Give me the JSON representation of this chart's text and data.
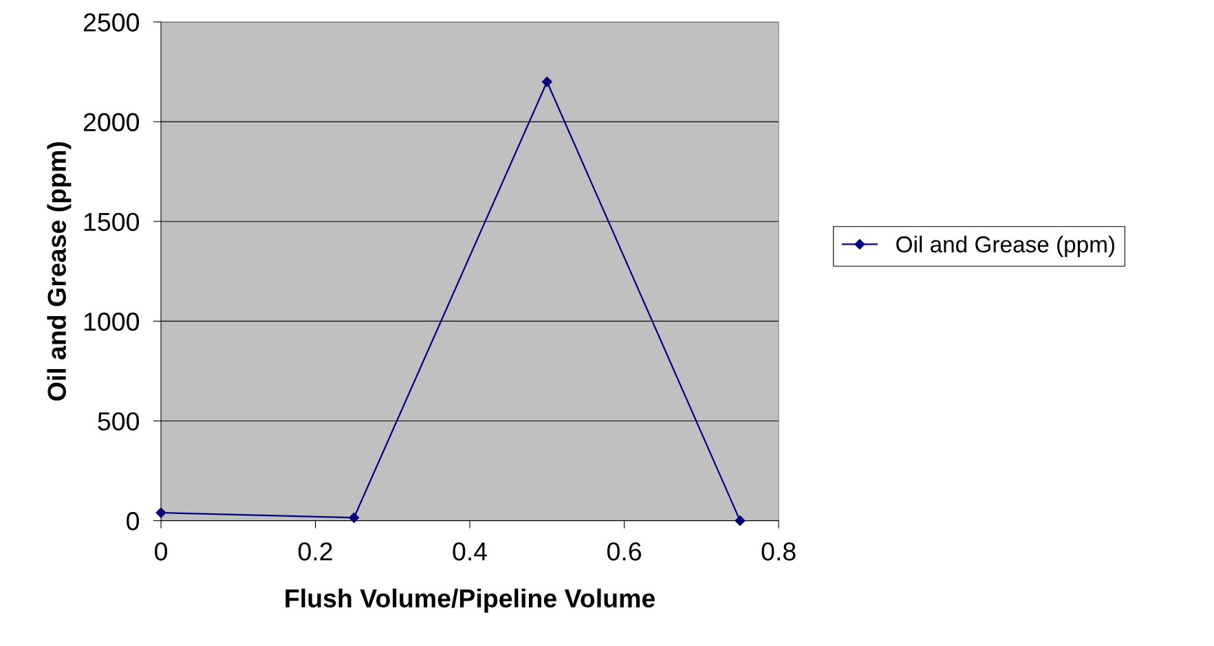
{
  "chart_data": {
    "type": "line",
    "xlabel": "Flush Volume/Pipeline Volume",
    "ylabel": "Oil and Grease (ppm)",
    "x": [
      0,
      0.25,
      0.5,
      0.75
    ],
    "series": [
      {
        "name": "Oil and Grease (ppm)",
        "color": "#000080",
        "values": [
          40,
          15,
          2200,
          0
        ]
      }
    ],
    "xlim": [
      0,
      0.8
    ],
    "xticks": [
      0,
      0.2,
      0.4,
      0.6,
      0.8
    ],
    "ylim": [
      0,
      2500
    ],
    "yticks": [
      0,
      500,
      1000,
      1500,
      2000,
      2500
    ],
    "grid": "y",
    "legend": "right",
    "marker": "diamond",
    "line_style": "solid"
  }
}
